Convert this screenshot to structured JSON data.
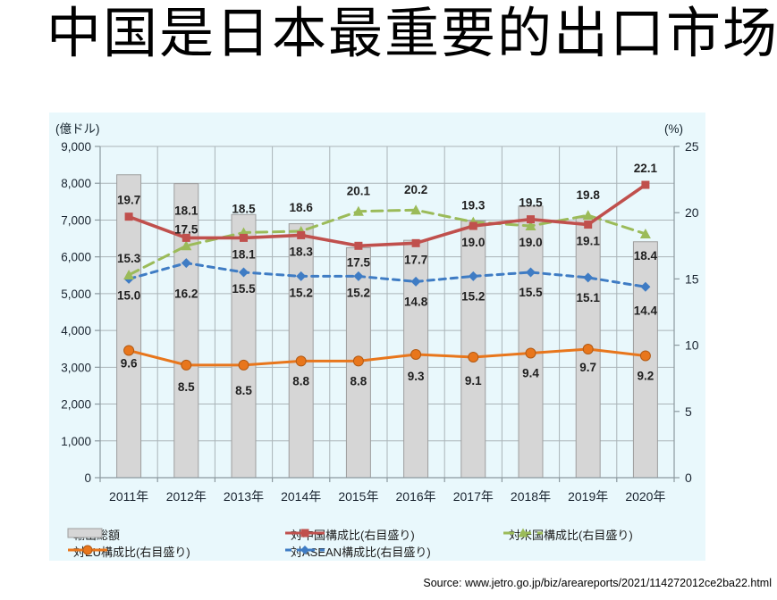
{
  "title": "中国是日本最重要的出口市场",
  "source": "Source: www.jetro.go.jp/biz/areareports/2021/114272012ce2ba22.html",
  "chart_data": {
    "type": "bar+line combo",
    "categories": [
      "2011年",
      "2012年",
      "2013年",
      "2014年",
      "2015年",
      "2016年",
      "2017年",
      "2018年",
      "2019年",
      "2020年"
    ],
    "left_axis": {
      "label": "(億ドル)",
      "min": 0,
      "max": 9000,
      "ticks": [
        0,
        1000,
        2000,
        3000,
        4000,
        5000,
        6000,
        7000,
        8000,
        9000
      ]
    },
    "right_axis": {
      "label": "(%)",
      "min": 0,
      "max": 25,
      "ticks": [
        0,
        5,
        10,
        15,
        20,
        25
      ]
    },
    "grid": "horizontal every 1000 (left scale) + vertical at category boundaries",
    "legend_position": "bottom, two rows",
    "colors": {
      "chart_background": "#e9f8fc",
      "gridline": "#aab4b8",
      "axis": "#8c999f",
      "tick_text": "#1a2430",
      "data_label_text": "#1f1f1f"
    },
    "series": [
      {
        "name": "輸出総額",
        "type": "bar",
        "axis": "left",
        "color": "#d6d6d6",
        "border": "#9e9e9e",
        "values": [
          8230,
          7990,
          7150,
          6900,
          6250,
          6450,
          6980,
          7380,
          7060,
          6410
        ]
      },
      {
        "name": "対中国構成比(右目盛り)",
        "type": "line",
        "axis": "right",
        "color": "#c0504d",
        "marker": "square",
        "dash": "solid",
        "values": [
          19.7,
          18.1,
          18.1,
          18.3,
          17.5,
          17.7,
          19.0,
          19.5,
          19.1,
          22.1
        ],
        "label_side": [
          "above",
          "above",
          "below",
          "below",
          "below",
          "below",
          "below",
          "above",
          "below",
          "above"
        ],
        "label_dy": [
          0,
          -12,
          0,
          0,
          0,
          0,
          0,
          0,
          0,
          0
        ]
      },
      {
        "name": "対米国構成比(右目盛り)",
        "type": "line",
        "axis": "right",
        "color": "#9bbb59",
        "marker": "triangle",
        "dash": "dash",
        "values": [
          15.3,
          17.5,
          18.5,
          18.6,
          20.1,
          20.2,
          19.3,
          19.0,
          19.8,
          18.4
        ],
        "label_side": [
          "above",
          "above",
          "above",
          "above",
          "above",
          "above",
          "above",
          "below",
          "above",
          "below"
        ],
        "label_dy": [
          0,
          0,
          -8,
          -8,
          -4,
          -4,
          0,
          0,
          -4,
          6
        ]
      },
      {
        "name": "対EU構成比(右目盛り)",
        "type": "line",
        "axis": "right",
        "color": "#e8761c",
        "marker": "circle",
        "dash": "solid",
        "values": [
          9.6,
          8.5,
          8.5,
          8.8,
          8.8,
          9.3,
          9.1,
          9.4,
          9.7,
          9.2
        ],
        "label_side": [
          "below",
          "below",
          "below",
          "below",
          "below",
          "below",
          "below",
          "below",
          "below",
          "below"
        ],
        "label_dy": [
          -4,
          6,
          10,
          4,
          4,
          6,
          8,
          4,
          2,
          4
        ]
      },
      {
        "name": "対ASEAN構成比(右目盛り)",
        "type": "line",
        "axis": "right",
        "color": "#3f7cc4",
        "marker": "diamond",
        "dash": "shortdash",
        "values": [
          15.0,
          16.2,
          15.5,
          15.2,
          15.2,
          14.8,
          15.2,
          15.5,
          15.1,
          14.4
        ],
        "label_side": [
          "below",
          "below",
          "below",
          "below",
          "below",
          "below",
          "below",
          "below",
          "below",
          "below"
        ],
        "label_dy": [
          0,
          16,
          0,
          0,
          0,
          4,
          4,
          4,
          4,
          8
        ]
      }
    ],
    "legend_rows": [
      [
        0,
        1,
        2
      ],
      [
        3,
        4
      ]
    ]
  }
}
